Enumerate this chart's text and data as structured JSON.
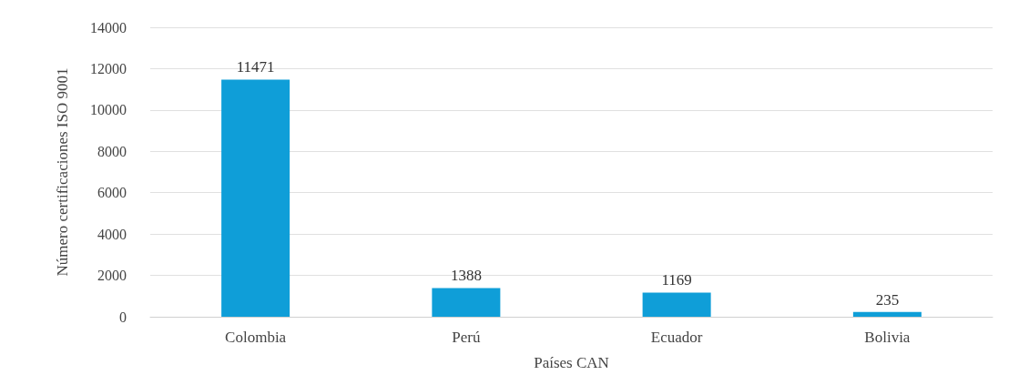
{
  "chart_data": {
    "type": "bar",
    "xlabel": "Países CAN",
    "ylabel": "Número certificaciones ISO 9001",
    "categories": [
      "Colombia",
      "Perú",
      "Ecuador",
      "Bolivia"
    ],
    "values": [
      11471,
      1388,
      1169,
      235
    ],
    "color": "#0f9ed8",
    "ylim": [
      0,
      14000
    ],
    "yticks": [
      0,
      2000,
      4000,
      6000,
      8000,
      10000,
      12000,
      14000
    ],
    "grid": "y",
    "data_labels": true
  }
}
